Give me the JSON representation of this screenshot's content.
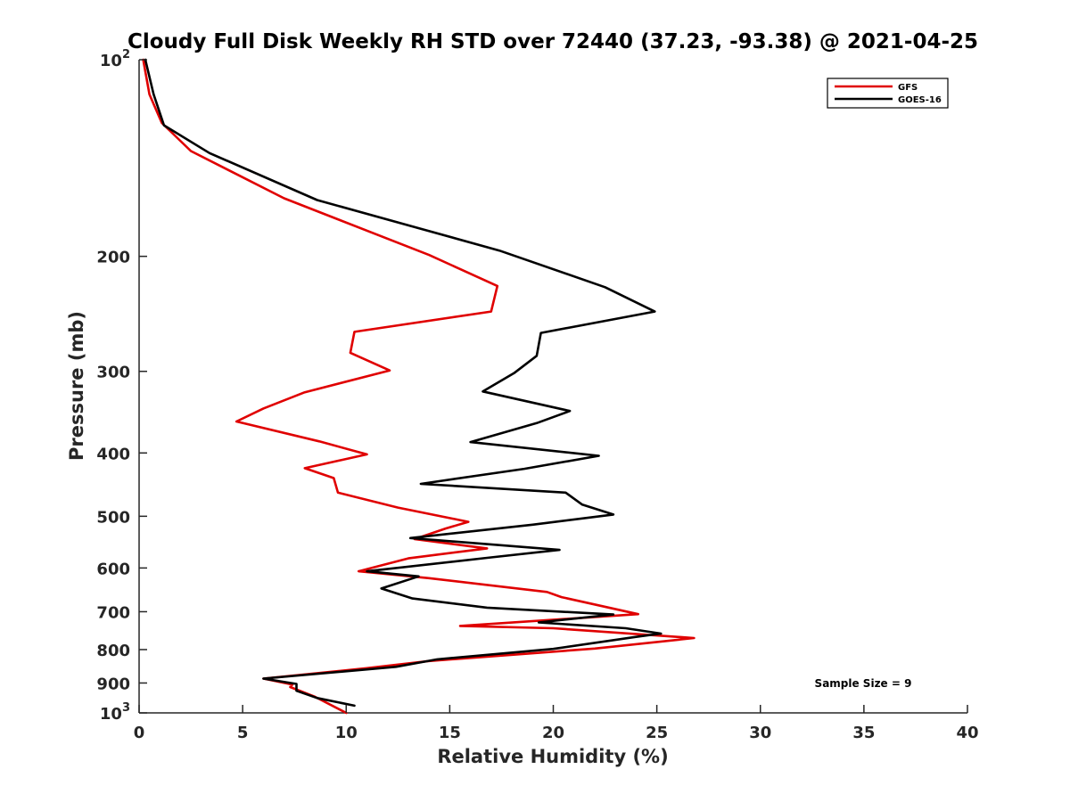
{
  "chart_data": {
    "type": "line",
    "title": "Cloudy Full Disk Weekly RH STD over 72440 (37.23, -93.38) @ 2021-04-25",
    "xlabel": "Relative Humidity (%)",
    "ylabel": "Pressure (mb)",
    "xlim": [
      0,
      40
    ],
    "ylim": [
      100,
      1000
    ],
    "y_scale": "log",
    "y_reversed": true,
    "grid": false,
    "legend_position": "top-right",
    "x_ticks": [
      0,
      5,
      10,
      15,
      20,
      25,
      30,
      35,
      40
    ],
    "x_tick_labels": [
      "0",
      "5",
      "10",
      "15",
      "20",
      "25",
      "30",
      "35",
      "40"
    ],
    "y_ticks": [
      100,
      200,
      300,
      400,
      500,
      600,
      700,
      800,
      900,
      1000
    ],
    "y_tick_labels": [
      {
        "base": "10",
        "exp": "2"
      },
      {
        "base": "200",
        "exp": ""
      },
      {
        "base": "300",
        "exp": ""
      },
      {
        "base": "400",
        "exp": ""
      },
      {
        "base": "500",
        "exp": ""
      },
      {
        "base": "600",
        "exp": ""
      },
      {
        "base": "700",
        "exp": ""
      },
      {
        "base": "800",
        "exp": ""
      },
      {
        "base": "900",
        "exp": ""
      },
      {
        "base": "10",
        "exp": "3"
      }
    ],
    "annotation": "Sample Size = 9",
    "series": [
      {
        "name": "GFS",
        "color": "#e00000",
        "points": [
          [
            0.2,
            100
          ],
          [
            0.5,
            113
          ],
          [
            1.1,
            125
          ],
          [
            2.5,
            138
          ],
          [
            7.0,
            163
          ],
          [
            14.0,
            199
          ],
          [
            17.3,
            222
          ],
          [
            17.0,
            243
          ],
          [
            10.4,
            261
          ],
          [
            10.2,
            281
          ],
          [
            12.1,
            299
          ],
          [
            8.0,
            323
          ],
          [
            6.0,
            342
          ],
          [
            4.7,
            358
          ],
          [
            8.7,
            384
          ],
          [
            11.0,
            402
          ],
          [
            8.0,
            422
          ],
          [
            9.4,
            437
          ],
          [
            9.6,
            460
          ],
          [
            12.5,
            485
          ],
          [
            15.9,
            510
          ],
          [
            14.8,
            522
          ],
          [
            13.3,
            542
          ],
          [
            16.8,
            560
          ],
          [
            13.0,
            580
          ],
          [
            10.6,
            607
          ],
          [
            14.0,
            622
          ],
          [
            19.7,
            653
          ],
          [
            20.4,
            665
          ],
          [
            24.1,
            706
          ],
          [
            15.5,
            736
          ],
          [
            20.0,
            742
          ],
          [
            26.8,
            768
          ],
          [
            22.0,
            797
          ],
          [
            14.0,
            833
          ],
          [
            11.0,
            854
          ],
          [
            6.0,
            886
          ],
          [
            7.4,
            905
          ],
          [
            7.3,
            913
          ],
          [
            8.5,
            945
          ],
          [
            10.0,
            1000
          ]
        ]
      },
      {
        "name": "GOES-16",
        "color": "#000000",
        "points": [
          [
            0.3,
            100
          ],
          [
            0.7,
            113
          ],
          [
            1.2,
            126
          ],
          [
            3.4,
            139
          ],
          [
            8.6,
            164
          ],
          [
            17.4,
            196
          ],
          [
            22.5,
            223
          ],
          [
            24.9,
            243
          ],
          [
            19.4,
            262
          ],
          [
            19.2,
            284
          ],
          [
            18.1,
            302
          ],
          [
            16.6,
            322
          ],
          [
            20.8,
            345
          ],
          [
            19.2,
            360
          ],
          [
            16.0,
            385
          ],
          [
            22.2,
            404
          ],
          [
            18.6,
            423
          ],
          [
            13.6,
            446
          ],
          [
            20.6,
            460
          ],
          [
            21.4,
            480
          ],
          [
            22.9,
            497
          ],
          [
            19.0,
            515
          ],
          [
            13.1,
            540
          ],
          [
            20.3,
            563
          ],
          [
            17.0,
            578
          ],
          [
            11.0,
            607
          ],
          [
            13.5,
            618
          ],
          [
            11.7,
            645
          ],
          [
            13.2,
            668
          ],
          [
            16.8,
            690
          ],
          [
            22.9,
            707
          ],
          [
            19.3,
            727
          ],
          [
            23.5,
            742
          ],
          [
            25.2,
            756
          ],
          [
            24.0,
            765
          ],
          [
            20.0,
            798
          ],
          [
            14.4,
            828
          ],
          [
            12.4,
            850
          ],
          [
            6.0,
            886
          ],
          [
            7.6,
            903
          ],
          [
            7.6,
            925
          ],
          [
            8.6,
            949
          ],
          [
            10.4,
            975
          ]
        ]
      }
    ]
  }
}
